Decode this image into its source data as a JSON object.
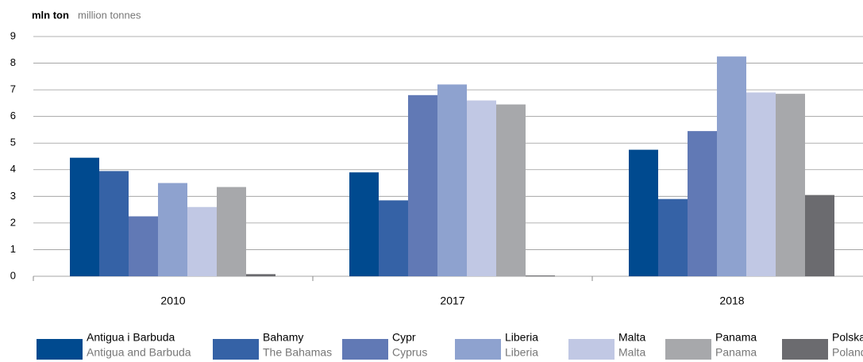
{
  "chart_data": {
    "type": "bar",
    "y_label": "mln ton",
    "y_label_en": "million tonnes",
    "categories": [
      "2010",
      "2017",
      "2018"
    ],
    "series": [
      {
        "name": "Antigua i Barbuda",
        "name_en": "Antigua and Barbuda",
        "color": "#004a8f",
        "values": [
          4.45,
          3.9,
          4.75
        ]
      },
      {
        "name": "Bahamy",
        "name_en": "The Bahamas",
        "color": "#3562a6",
        "values": [
          3.95,
          2.85,
          2.9
        ]
      },
      {
        "name": "Cypr",
        "name_en": "Cyprus",
        "color": "#6179b5",
        "values": [
          2.25,
          6.8,
          5.45
        ]
      },
      {
        "name": "Liberia",
        "name_en": "Liberia",
        "color": "#8ea2cf",
        "values": [
          3.5,
          7.2,
          8.25
        ]
      },
      {
        "name": "Malta",
        "name_en": "Malta",
        "color": "#c1c8e4",
        "values": [
          2.6,
          6.6,
          6.9
        ]
      },
      {
        "name": "Panama",
        "name_en": "Panama",
        "color": "#a7a8ab",
        "values": [
          3.35,
          6.45,
          6.85
        ]
      },
      {
        "name": "Polska",
        "name_en": "Poland",
        "color": "#6b6b6f",
        "values": [
          0.08,
          0.03,
          3.05
        ]
      }
    ],
    "ylim": [
      0,
      9
    ],
    "yticks": [
      0,
      1,
      2,
      3,
      4,
      5,
      6,
      7,
      8,
      9
    ],
    "grid": true
  }
}
